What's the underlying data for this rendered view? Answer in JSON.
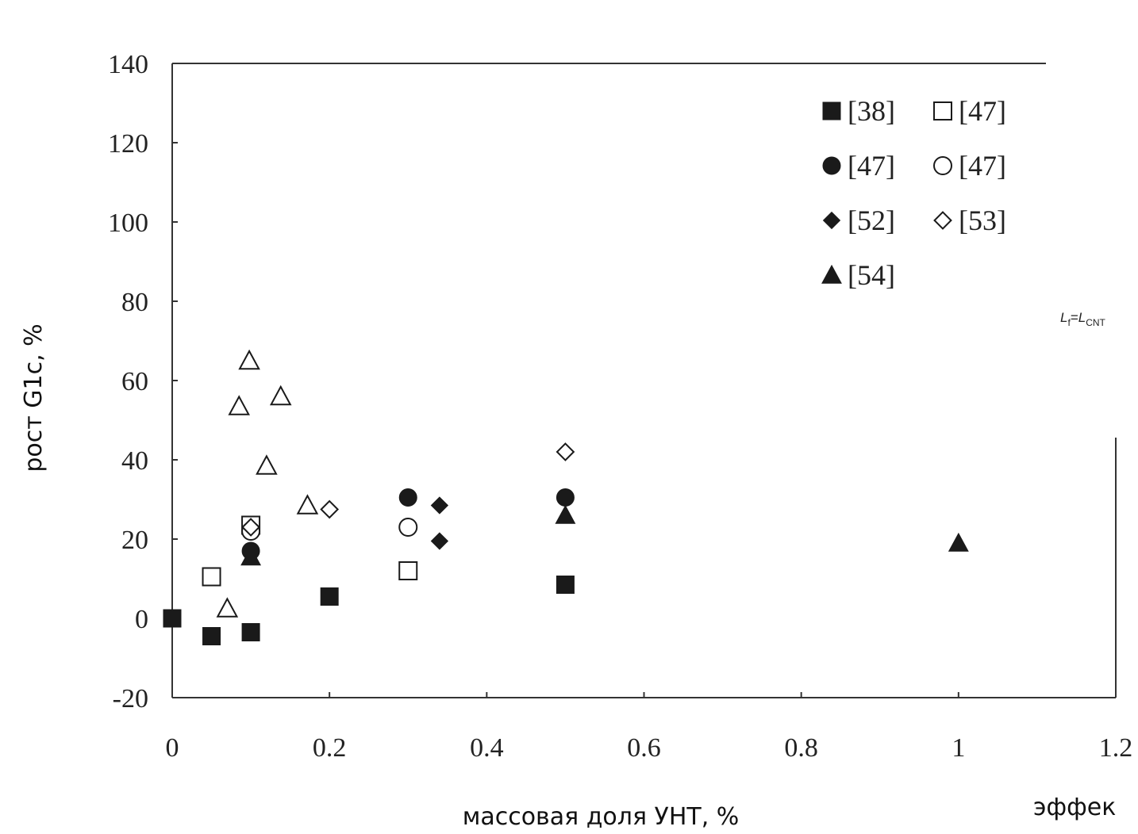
{
  "chart_data": {
    "type": "scatter",
    "xlabel": "массовая доля УНТ, %",
    "ylabel": "рост G1c, %",
    "xlim": [
      0,
      1.2
    ],
    "ylim": [
      -20,
      140
    ],
    "x_ticks": [
      "0",
      "0.2",
      "0.4",
      "0.6",
      "0.8",
      "1",
      "1.2"
    ],
    "y_ticks": [
      "-20",
      "0",
      "20",
      "40",
      "60",
      "80",
      "100",
      "120",
      "140"
    ],
    "grid": false,
    "legend_position": "top-right",
    "series": [
      {
        "name": "[38]",
        "marker": "square-filled",
        "points": [
          [
            0,
            0
          ],
          [
            0.05,
            -4.5
          ],
          [
            0.1,
            -3.5
          ],
          [
            0.2,
            5.5
          ],
          [
            0.5,
            8.5
          ]
        ]
      },
      {
        "name": "[47]",
        "marker": "square-open",
        "points": [
          [
            0.05,
            10.5
          ],
          [
            0.1,
            23.5
          ],
          [
            0.3,
            12
          ]
        ]
      },
      {
        "name": "[47]",
        "marker": "circle-filled",
        "points": [
          [
            0.1,
            17
          ],
          [
            0.3,
            30.5
          ],
          [
            0.5,
            30.5
          ]
        ]
      },
      {
        "name": "[47]",
        "marker": "circle-open",
        "points": [
          [
            0.1,
            22
          ],
          [
            0.3,
            23
          ]
        ]
      },
      {
        "name": "[52]",
        "marker": "diamond-filled",
        "points": [
          [
            0.34,
            28.5
          ],
          [
            0.34,
            19.5
          ]
        ]
      },
      {
        "name": "[53]",
        "marker": "diamond-open",
        "points": [
          [
            0.1,
            23
          ],
          [
            0.2,
            27.5
          ],
          [
            0.5,
            42
          ]
        ]
      },
      {
        "name": "[54]",
        "marker": "triangle-filled",
        "points": [
          [
            0.1,
            15.5
          ],
          [
            0.5,
            26
          ],
          [
            1.0,
            19
          ]
        ]
      },
      {
        "name": "",
        "marker": "triangle-open",
        "points": [
          [
            0.07,
            2.5
          ],
          [
            0.085,
            53.5
          ],
          [
            0.098,
            65
          ],
          [
            0.12,
            38.5
          ],
          [
            0.138,
            56
          ],
          [
            0.172,
            28.5
          ]
        ]
      }
    ],
    "annotations": {
      "lf_main": "L",
      "lf_sub": "f",
      "eq": "=",
      "lcnt_main": "L",
      "lcnt_sub": "CNT"
    },
    "cropped_text": "эффек"
  }
}
